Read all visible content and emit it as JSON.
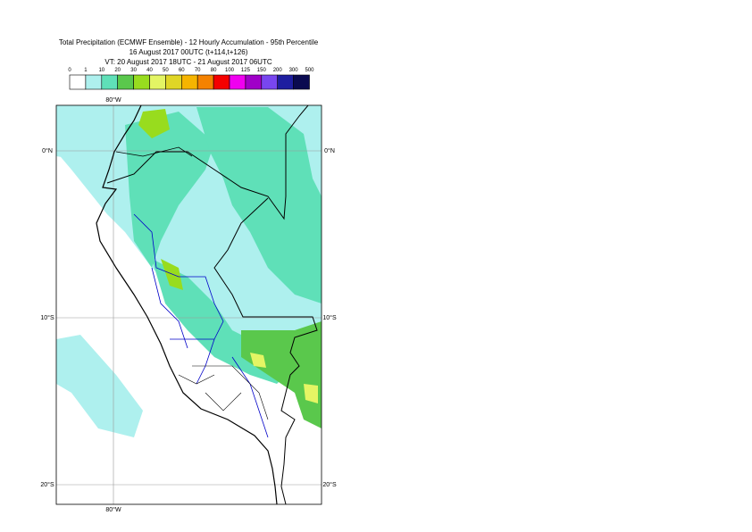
{
  "title": {
    "line1": "Total Precipitation (ECMWF Ensemble) - 12 Hourly Accumulation - 95th Percentile",
    "line2": "16 August 2017 00UTC (t+114,t+126)",
    "line3": "VT: 20 August 2017 18UTC - 21 August 2017 06UTC"
  },
  "legend": {
    "labels": [
      "0",
      "1",
      "10",
      "20",
      "30",
      "40",
      "50",
      "60",
      "70",
      "80",
      "100",
      "125",
      "150",
      "200",
      "300",
      "500"
    ],
    "colors": [
      "#ffffff",
      "#aef0ee",
      "#5fe0b8",
      "#5ac84c",
      "#98dc1e",
      "#e4f564",
      "#e0d626",
      "#f6b400",
      "#f58200",
      "#f50000",
      "#f000f0",
      "#a000c8",
      "#7846f0",
      "#1e1ea0",
      "#0a0a50"
    ]
  },
  "map": {
    "lon_label_top": "80°W",
    "lon_label_bottom": "80°W",
    "lat_labels_left": [
      "0°N",
      "10°S",
      "20°S"
    ],
    "lat_labels_right": [
      "0°N",
      "10°S",
      "20°S"
    ]
  }
}
